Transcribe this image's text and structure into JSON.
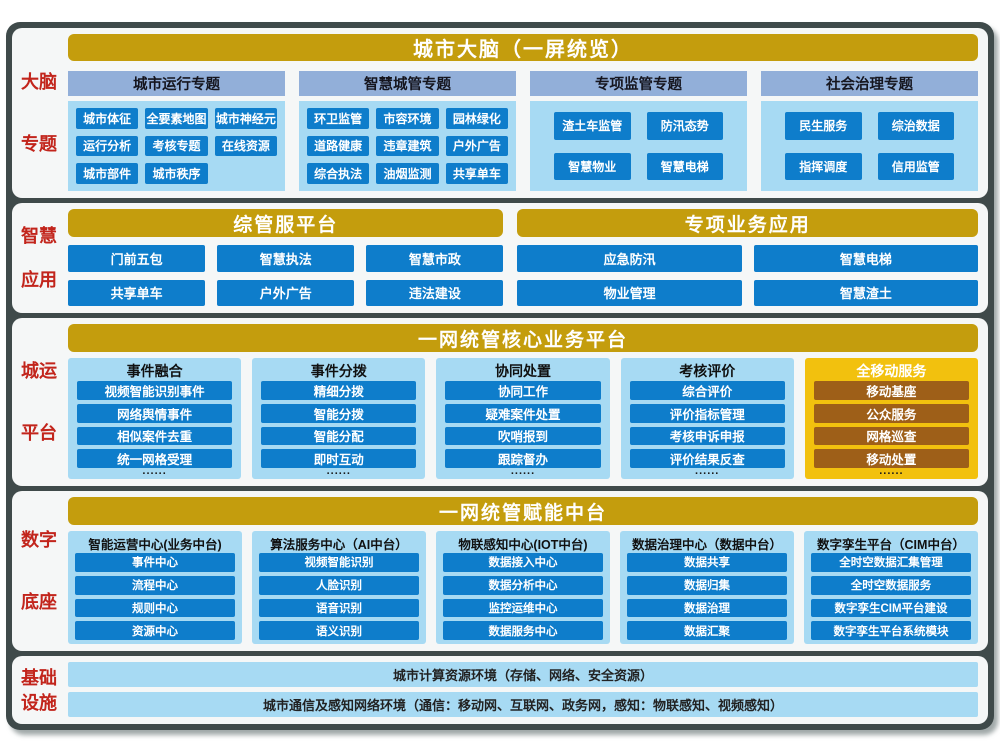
{
  "colors": {
    "board_bg": "#3f4a4a",
    "panel_bg": "#f5f7f7",
    "gold_header": "#c49d0d",
    "gold_container": "#f2c10e",
    "brown_item": "#9e5f18",
    "subheader_blue": "#92afd9",
    "light_blue_container": "#a7daf3",
    "blue_item": "#0e7dcb",
    "red_label": "#c2251c"
  },
  "brain": {
    "label1": "大脑",
    "label2": "专题",
    "header": "城市大脑（一屏统览）",
    "groups": [
      {
        "title": "城市运行专题",
        "items": [
          "城市体征",
          "全要素地图",
          "城市神经元",
          "运行分析",
          "考核专题",
          "在线资源",
          "城市部件",
          "城市秩序"
        ]
      },
      {
        "title": "智慧城管专题",
        "items": [
          "环卫监管",
          "市容环境",
          "园林绿化",
          "道路健康",
          "违章建筑",
          "户外广告",
          "综合执法",
          "油烟监测",
          "共享单车"
        ]
      },
      {
        "title": "专项监管专题",
        "items": [
          "渣土车监管",
          "防汛态势",
          "智慧物业",
          "智慧电梯"
        ]
      },
      {
        "title": "社会治理专题",
        "items": [
          "民生服务",
          "综治数据",
          "指挥调度",
          "信用监管"
        ]
      }
    ]
  },
  "apps": {
    "label1": "智慧",
    "label2": "应用",
    "sections": [
      {
        "header": "综管服平台",
        "items": [
          "门前五包",
          "智慧执法",
          "智慧市政",
          "共享单车",
          "户外广告",
          "违法建设"
        ]
      },
      {
        "header": "专项业务应用",
        "items": [
          "应急防汛",
          "智慧电梯",
          "物业管理",
          "智慧渣土"
        ]
      }
    ]
  },
  "platform": {
    "label1": "城运",
    "label2": "平台",
    "header": "一网统管核心业务平台",
    "columns": [
      {
        "title": "事件融合",
        "items": [
          "视频智能识别事件",
          "网络舆情事件",
          "相似案件去重",
          "统一网格受理"
        ],
        "more": "......"
      },
      {
        "title": "事件分拨",
        "items": [
          "精细分拨",
          "智能分拨",
          "智能分配",
          "即时互动"
        ],
        "more": "......"
      },
      {
        "title": "协同处置",
        "items": [
          "协同工作",
          "疑难案件处置",
          "吹哨报到",
          "跟踪督办"
        ],
        "more": "......"
      },
      {
        "title": "考核评价",
        "items": [
          "综合评价",
          "评价指标管理",
          "考核申诉申报",
          "评价结果反查"
        ],
        "more": "......"
      },
      {
        "title": "全移动服务",
        "items": [
          "移动基座",
          "公众服务",
          "网格巡查",
          "移动处置"
        ],
        "more": "......"
      }
    ]
  },
  "midplatform": {
    "label1": "数字",
    "label2": "底座",
    "header": "一网统管赋能中台",
    "columns": [
      {
        "title": "智能运营中心(业务中台)",
        "items": [
          "事件中心",
          "流程中心",
          "规则中心",
          "资源中心"
        ]
      },
      {
        "title": "算法服务中心（AI中台）",
        "items": [
          "视频智能识别",
          "人脸识别",
          "语音识别",
          "语义识别"
        ]
      },
      {
        "title": "物联感知中心(IOT中台)",
        "items": [
          "数据接入中心",
          "数据分析中心",
          "监控运维中心",
          "数据服务中心"
        ]
      },
      {
        "title": "数据治理中心（数据中台）",
        "items": [
          "数据共享",
          "数据归集",
          "数据治理",
          "数据汇聚"
        ]
      },
      {
        "title": "数字孪生平台（CIM中台）",
        "items": [
          "全时空数据汇集管理",
          "全时空数据服务",
          "数字孪生CIM平台建设",
          "数字孪生平台系统模块"
        ]
      }
    ]
  },
  "infrastructure": {
    "label1": "基础",
    "label2": "设施",
    "bars": [
      "城市计算资源环境（存储、网络、安全资源）",
      "城市通信及感知网络环境（通信：移动网、互联网、政务网，感知：物联感知、视频感知）"
    ]
  }
}
